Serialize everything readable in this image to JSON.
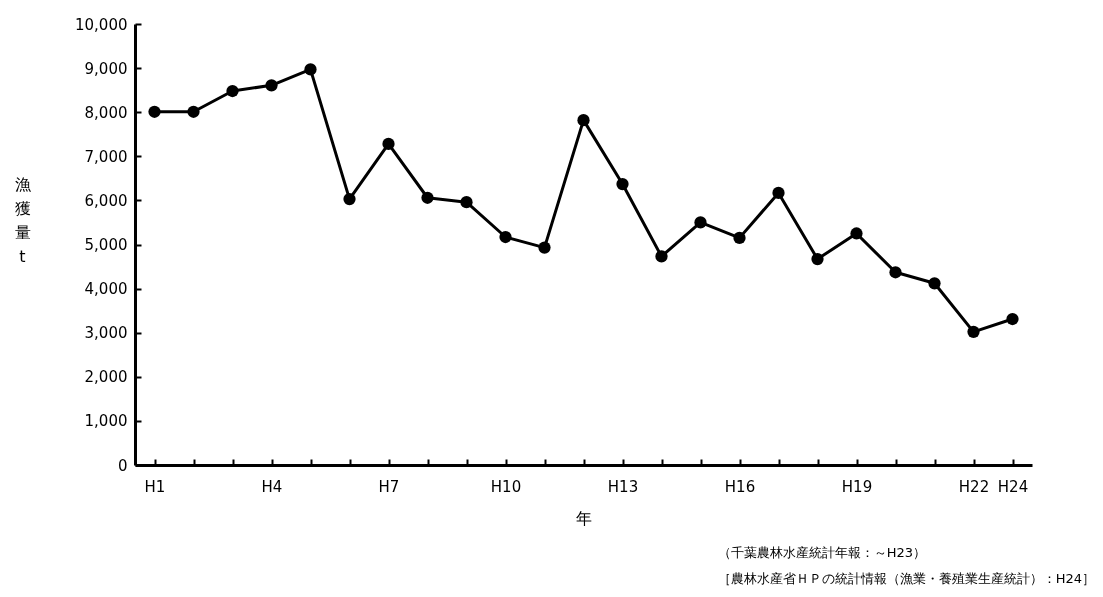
{
  "chart_data": {
    "type": "line",
    "xlabel": "年",
    "ylabel": "漁獲量 t",
    "categories": [
      "H1",
      null,
      null,
      "H4",
      null,
      null,
      "H7",
      null,
      null,
      "H10",
      null,
      null,
      "H13",
      null,
      null,
      "H16",
      null,
      null,
      "H19",
      null,
      null,
      "H22",
      "H24"
    ],
    "series": [
      {
        "color": "#000000",
        "values": [
          8010,
          8010,
          8480,
          8610,
          8970,
          6030,
          7280,
          6060,
          5960,
          5170,
          4930,
          7820,
          6370,
          4730,
          5500,
          5150,
          6170,
          4670,
          5250,
          4370,
          4120,
          3020,
          3310
        ]
      }
    ],
    "ylim": [
      0,
      10000
    ],
    "yticks": [
      0,
      {
        "value": 1000,
        "label": "1,000"
      },
      {
        "value": 2000,
        "label": "2,000"
      },
      {
        "value": 3000,
        "label": "3,000"
      },
      {
        "value": 4000,
        "label": "4,000"
      },
      {
        "value": 5000,
        "label": "5,000"
      },
      {
        "value": 6000,
        "label": "6,000"
      },
      {
        "value": 7000,
        "label": "7,000"
      },
      {
        "value": 8000,
        "label": "8,000"
      },
      {
        "value": 9000,
        "label": "9,000"
      },
      {
        "value": 10000,
        "label": "10,000"
      }
    ],
    "grid": false,
    "marker": "circle",
    "line_style": "solid",
    "annotations": [
      "（千葉農林水産統計年報：～H23）",
      "［農林水産省ＨＰの統計情報（漁業・養殖業生産統計）：H24］"
    ]
  }
}
